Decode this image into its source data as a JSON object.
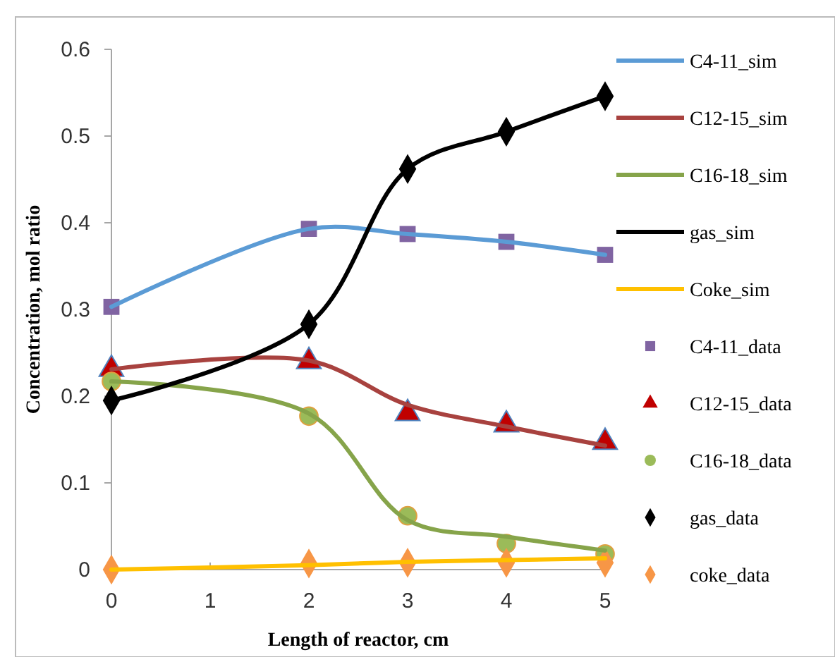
{
  "chart_data": {
    "type": "line",
    "xlabel": "Length of reactor, cm",
    "ylabel": "Concentration, mol ratio",
    "x": [
      0,
      2,
      3,
      4,
      5
    ],
    "xlim": [
      0,
      5
    ],
    "xticks": [
      0,
      1,
      2,
      3,
      4,
      5
    ],
    "ylim": [
      0,
      0.6
    ],
    "yticks": [
      0,
      0.1,
      0.2,
      0.3,
      0.4,
      0.5,
      0.6
    ],
    "grid": false,
    "legend": "right",
    "series": [
      {
        "name": "C4-11_sim",
        "marker": "none",
        "color": "#5b9bd5",
        "values": [
          0.303,
          0.393,
          0.387,
          0.378,
          0.363
        ]
      },
      {
        "name": "C12-15_sim",
        "marker": "none",
        "color": "#a8423f",
        "values": [
          0.231,
          0.241,
          0.19,
          0.165,
          0.143
        ]
      },
      {
        "name": "C16-18_sim",
        "marker": "none",
        "color": "#86a44a",
        "values": [
          0.217,
          0.18,
          0.057,
          0.038,
          0.022
        ]
      },
      {
        "name": "gas_sim",
        "marker": "none",
        "color": "#000000",
        "values": [
          0.195,
          0.283,
          0.462,
          0.505,
          0.546
        ]
      },
      {
        "name": "Coke_sim",
        "marker": "none",
        "color": "#ffc000",
        "values": [
          0,
          0.005,
          0.009,
          0.011,
          0.013
        ]
      },
      {
        "name": "C4-11_data",
        "type": "scatter",
        "marker": "square",
        "color": "#8064a2",
        "values": [
          0.303,
          0.393,
          0.387,
          0.378,
          0.363
        ]
      },
      {
        "name": "C12-15_data",
        "type": "scatter",
        "marker": "triangle",
        "color": "#c00000",
        "values": [
          0.231,
          0.24,
          0.18,
          0.167,
          0.147
        ]
      },
      {
        "name": "C16-18_data",
        "type": "scatter",
        "marker": "circle",
        "color": "#9bbb59",
        "values": [
          0.217,
          0.177,
          0.062,
          0.03,
          0.018
        ]
      },
      {
        "name": "gas_data",
        "type": "scatter",
        "marker": "diamond",
        "color": "#000000",
        "values": [
          0.195,
          0.283,
          0.462,
          0.505,
          0.546
        ]
      },
      {
        "name": "coke_data",
        "type": "scatter",
        "marker": "diamond",
        "color": "#f79646",
        "values": [
          0,
          0.007,
          0.008,
          0.008,
          0.008
        ]
      }
    ]
  }
}
